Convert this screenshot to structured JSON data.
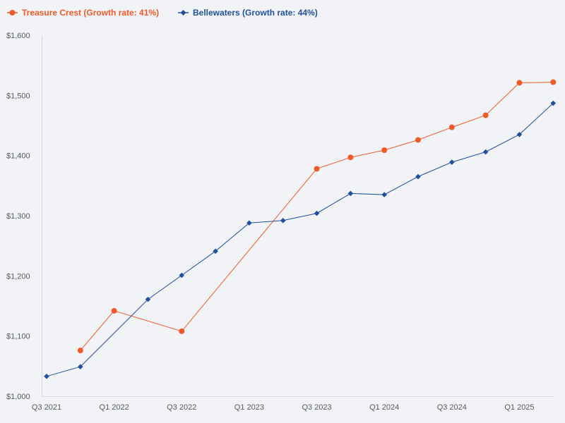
{
  "chart_data": {
    "type": "line",
    "title": "",
    "xlabel": "",
    "ylabel": "",
    "ylim": [
      1000,
      1600
    ],
    "y_ticks": [
      1000,
      1100,
      1200,
      1300,
      1400,
      1500,
      1600
    ],
    "y_tick_labels": [
      "$1,000",
      "$1,100",
      "$1,200",
      "$1,300",
      "$1,400",
      "$1,500",
      "$1,600"
    ],
    "x_range": [
      0,
      15.35
    ],
    "x_ticks": [
      0,
      2,
      4,
      6,
      8,
      10,
      12,
      14
    ],
    "x_tick_labels": [
      "Q3 2021",
      "Q1 2022",
      "Q3 2022",
      "Q1 2023",
      "Q3 2023",
      "Q1 2024",
      "Q3 2024",
      "Q1 2025"
    ],
    "legend_position": "top-left",
    "series": [
      {
        "name": "Treasure Crest (Growth rate: 41%)",
        "color": "#f05a28",
        "marker": "circle",
        "points": [
          [
            1,
            1076
          ],
          [
            2,
            1142
          ],
          [
            4,
            1108
          ],
          [
            8,
            1378
          ],
          [
            9,
            1397
          ],
          [
            10,
            1409
          ],
          [
            11,
            1426
          ],
          [
            12,
            1447
          ],
          [
            13,
            1467
          ],
          [
            14,
            1521
          ],
          [
            15,
            1522
          ]
        ]
      },
      {
        "name": "Bellewaters (Growth rate: 44%)",
        "color": "#2050a0",
        "marker": "diamond",
        "points": [
          [
            0,
            1033
          ],
          [
            1,
            1049
          ],
          [
            3,
            1161
          ],
          [
            4,
            1201
          ],
          [
            5,
            1241
          ],
          [
            6,
            1288
          ],
          [
            7,
            1292
          ],
          [
            8,
            1304
          ],
          [
            9,
            1337
          ],
          [
            10,
            1335
          ],
          [
            11,
            1365
          ],
          [
            12,
            1389
          ],
          [
            13,
            1406
          ],
          [
            14,
            1435
          ],
          [
            15,
            1487
          ]
        ]
      }
    ]
  }
}
